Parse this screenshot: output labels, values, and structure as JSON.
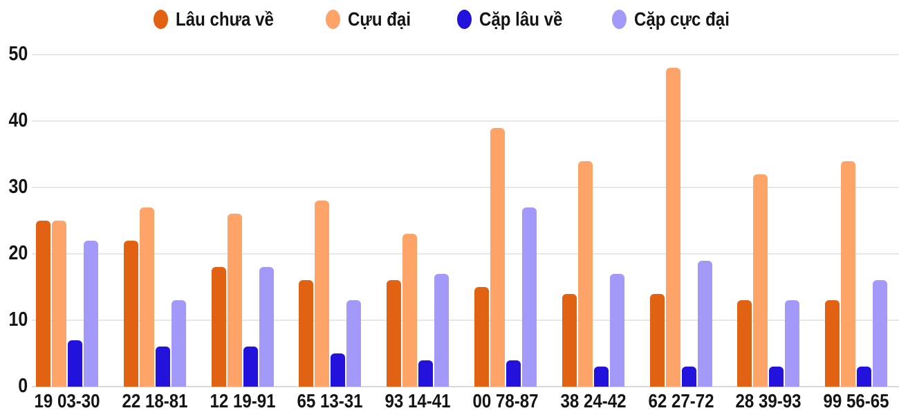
{
  "chart_data": {
    "type": "bar",
    "title": "",
    "xlabel": "",
    "ylabel": "",
    "categories": [
      "19 03-30",
      "22 18-81",
      "12 19-91",
      "65 13-31",
      "93 14-41",
      "00 78-87",
      "38 24-42",
      "62 27-72",
      "28 39-93",
      "99 56-65"
    ],
    "series": [
      {
        "name": "Lâu chưa về",
        "color": "#E06212",
        "values": [
          25,
          22,
          18,
          16,
          16,
          15,
          14,
          14,
          13,
          13
        ]
      },
      {
        "name": "Cựu đại",
        "color": "#FEA469",
        "values": [
          25,
          27,
          26,
          28,
          23,
          39,
          34,
          48,
          32,
          34
        ]
      },
      {
        "name": "Cặp lâu về",
        "color": "#2312DC",
        "values": [
          7,
          6,
          6,
          5,
          4,
          4,
          3,
          3,
          3,
          3
        ]
      },
      {
        "name": "Cặp cực đại",
        "color": "#A299F8",
        "values": [
          22,
          13,
          18,
          13,
          17,
          27,
          17,
          19,
          13,
          16
        ]
      }
    ],
    "y_ticks": [
      0,
      10,
      20,
      30,
      40,
      50
    ],
    "ylim": [
      0,
      50
    ],
    "grid": true,
    "legend_position": "top",
    "background": "#FFFFFF",
    "text_color": "#141414",
    "gridline_color": "#E6E6E6",
    "baseline_color": "#D8D8D8"
  }
}
